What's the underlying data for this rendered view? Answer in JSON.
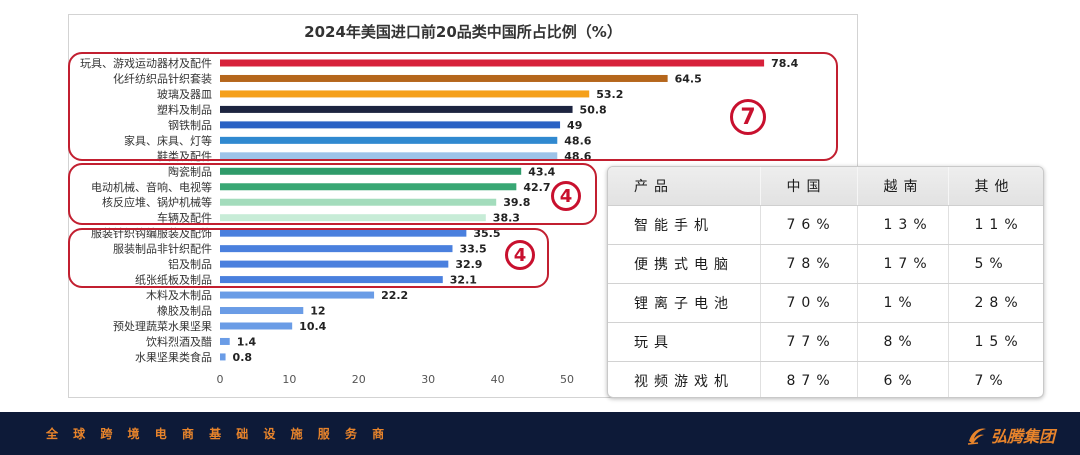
{
  "chart_data": {
    "type": "bar",
    "orientation": "horizontal",
    "title": "2024年美国进口前20品类中国所占比例（%）",
    "categories": [
      "玩具、游戏运动器材及配件",
      "化纤纺织品针织套装",
      "玻璃及器皿",
      "塑料及制品",
      "钢铁制品",
      "家具、床具、灯等",
      "鞋类及配件",
      "陶瓷制品",
      "电动机械、音响、电视等",
      "核反应堆、锅炉机械等",
      "车辆及配件",
      "服装针织钩编服装及配饰",
      "服装制品非针织配件",
      "铝及制品",
      "纸张纸板及制品",
      "木料及木制品",
      "橡胶及制品",
      "预处理蔬菜水果坚果",
      "饮料烈酒及醋",
      "水果坚果类食品"
    ],
    "values": [
      78.4,
      64.5,
      53.2,
      50.8,
      49,
      48.6,
      48.6,
      43.4,
      42.7,
      39.8,
      38.3,
      35.5,
      33.5,
      32.9,
      32.1,
      22.2,
      12,
      10.4,
      1.4,
      0.8
    ],
    "colors": [
      "#d7213b",
      "#b5661c",
      "#f5a01a",
      "#1d2440",
      "#2b62c4",
      "#3089d0",
      "#9dc3e8",
      "#2f9b6a",
      "#38a774",
      "#a3dcbc",
      "#c7ecd7",
      "#4a80de",
      "#4a80de",
      "#4a80de",
      "#4a80de",
      "#6a9ce6",
      "#6a9ce6",
      "#6a9ce6",
      "#6a9ce6",
      "#6a9ce6"
    ],
    "xticks": [
      0,
      10,
      20,
      30,
      40,
      50
    ],
    "xlim": [
      0,
      80
    ],
    "grid": false
  },
  "annotations": [
    {
      "label": "7"
    },
    {
      "label": "4"
    },
    {
      "label": "4"
    }
  ],
  "table": {
    "headers": [
      "产品",
      "中国",
      "越南",
      "其他"
    ],
    "rows": [
      [
        "智能手机",
        "76%",
        "13%",
        "11%"
      ],
      [
        "便携式电脑",
        "78%",
        "17%",
        "5%"
      ],
      [
        "锂离子电池",
        "70%",
        "1%",
        "28%"
      ],
      [
        "玩具",
        "77%",
        "8%",
        "15%"
      ],
      [
        "视频游戏机",
        "87%",
        "6%",
        "7%"
      ]
    ]
  },
  "footer": {
    "tagline": "全 球 跨 境 电 商 基 础 设 施 服 务 商",
    "logo_text": "弘腾集团",
    "logo_icon": "swoosh-icon"
  },
  "colors": {
    "annotation": "#c21f30",
    "footer_bg": "#0d1a38",
    "footer_text": "#e8842b"
  }
}
